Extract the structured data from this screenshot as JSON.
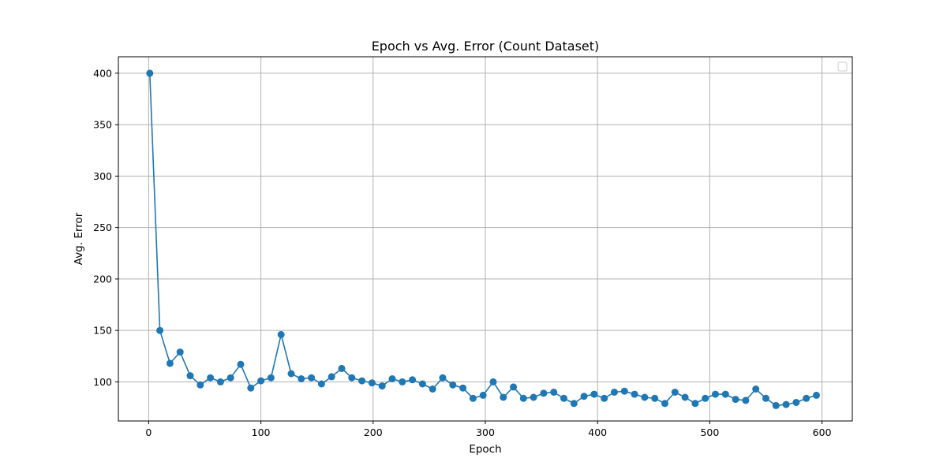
{
  "chart_data": {
    "type": "line",
    "title": "Epoch vs Avg. Error (Count Dataset)",
    "xlabel": "Epoch",
    "ylabel": "Avg. Error",
    "xlim": [
      -27,
      627
    ],
    "ylim": [
      62,
      416
    ],
    "xticks": [
      0,
      100,
      200,
      300,
      400,
      500,
      600
    ],
    "yticks": [
      100,
      150,
      200,
      250,
      300,
      350,
      400
    ],
    "grid": true,
    "legend": "top-right, empty",
    "marker": "circle",
    "colors": {
      "series": "#1f77b4",
      "grid": "#b0b0b0",
      "axis": "#000000"
    },
    "series": [
      {
        "x": [
          1,
          10,
          19,
          28,
          37,
          46,
          55,
          64,
          73,
          82,
          91,
          100,
          109,
          118,
          127,
          136,
          145,
          154,
          163,
          172,
          181,
          190,
          199,
          208,
          217,
          226,
          235,
          244,
          253,
          262,
          271,
          280,
          289,
          298,
          307,
          316,
          325,
          334,
          343,
          352,
          361,
          370,
          379,
          388,
          397,
          406,
          415,
          424,
          433,
          442,
          451,
          460,
          469,
          478,
          487,
          496,
          505,
          514,
          523,
          532,
          541,
          550,
          559,
          568,
          577,
          586,
          595
        ],
        "y": [
          400,
          150,
          118,
          129,
          106,
          97,
          104,
          100,
          104,
          117,
          94,
          101,
          104,
          146,
          108,
          103,
          104,
          98,
          105,
          113,
          104,
          101,
          99,
          96,
          103,
          100,
          102,
          98,
          93,
          104,
          97,
          94,
          84,
          87,
          100,
          85,
          95,
          84,
          85,
          89,
          90,
          84,
          79,
          86,
          88,
          84,
          90,
          91,
          88,
          85,
          84,
          79,
          90,
          85,
          79,
          84,
          88,
          88,
          83,
          82,
          93,
          84,
          77,
          78,
          80,
          84,
          87
        ]
      }
    ]
  }
}
